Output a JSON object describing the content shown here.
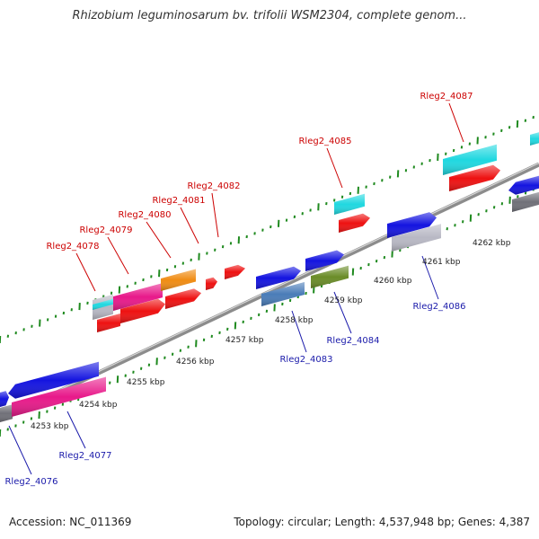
{
  "header": {
    "title": "Rhizobium leguminosarum bv. trifolii WSM2304, complete genom..."
  },
  "footer": {
    "accession": "Accession: NC_011369",
    "summary": "Topology: circular; Length: 4,537,948 bp; Genes: 4,387"
  },
  "scale": {
    "labels": [
      "4253 kbp",
      "4254 kbp",
      "4255 kbp",
      "4256 kbp",
      "4257 kbp",
      "4258 kbp",
      "4259 kbp",
      "4260 kbp",
      "4261 kbp",
      "4262 kbp"
    ]
  },
  "genes": {
    "forward": [
      "Rleg2_4078",
      "Rleg2_4079",
      "Rleg2_4080",
      "Rleg2_4081",
      "Rleg2_4082",
      "Rleg2_4085",
      "Rleg2_4087"
    ],
    "reverse": [
      "Rleg2_4076",
      "Rleg2_4077",
      "Rleg2_4083",
      "Rleg2_4084",
      "Rleg2_4086"
    ]
  },
  "colors": {
    "forward_label": "#cc0000",
    "reverse_label": "#1a1aaa",
    "backbone": "#8c8c8c",
    "tick": "#1f8a1f",
    "red": "#ee1111",
    "blue": "#1414e0",
    "magenta": "#e8198a",
    "cyan": "#20d8e0",
    "orange": "#f08c14",
    "grey": "#b8b8c4",
    "darkgrey": "#707078",
    "steelblue": "#4a7cb8",
    "olive": "#6a8c28"
  }
}
